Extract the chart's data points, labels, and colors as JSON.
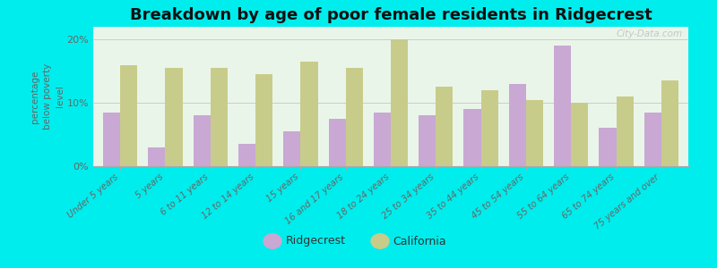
{
  "title": "Breakdown by age of poor female residents in Ridgecrest",
  "categories": [
    "Under 5 years",
    "5 years",
    "6 to 11 years",
    "12 to 14 years",
    "15 years",
    "16 and 17 years",
    "18 to 24 years",
    "25 to 34 years",
    "35 to 44 years",
    "45 to 54 years",
    "55 to 64 years",
    "65 to 74 years",
    "75 years and over"
  ],
  "ridgecrest": [
    8.5,
    3.0,
    8.0,
    3.5,
    5.5,
    7.5,
    8.5,
    8.0,
    9.0,
    13.0,
    19.0,
    6.0,
    8.5
  ],
  "california": [
    16.0,
    15.5,
    15.5,
    14.5,
    16.5,
    15.5,
    20.0,
    12.5,
    12.0,
    10.5,
    10.0,
    11.0,
    13.5
  ],
  "ridgecrest_color": "#c9a8d4",
  "california_color": "#c8cc8a",
  "plot_bg_color": "#eaf5ea",
  "outer_background": "#00eded",
  "ylabel": "percentage\nbelow poverty\nlevel",
  "ylim": [
    0,
    22
  ],
  "yticks": [
    0,
    10,
    20
  ],
  "ytick_labels": [
    "0%",
    "10%",
    "20%"
  ],
  "bar_width": 0.38,
  "title_fontsize": 13,
  "legend_labels": [
    "Ridgecrest",
    "California"
  ],
  "watermark": "City-Data.com"
}
